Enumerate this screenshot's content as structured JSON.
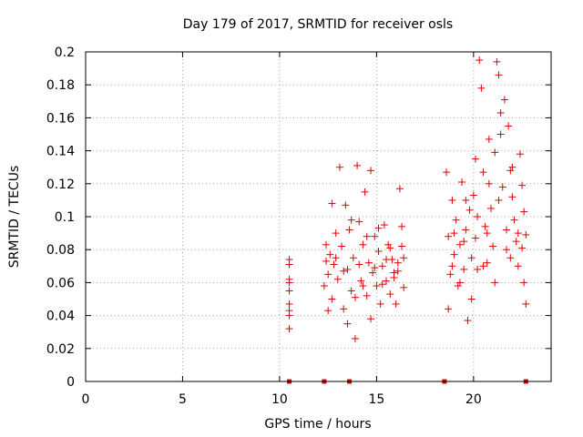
{
  "chart_data": {
    "type": "scatter",
    "title": "Day 179 of 2017, SRMTID for receiver osls",
    "xlabel": "GPS time / hours",
    "ylabel": "SRMTID / TECUs",
    "xlim": [
      0,
      24
    ],
    "ylim": [
      0,
      0.2
    ],
    "grid": true,
    "x_ticks": [
      0,
      5,
      10,
      15,
      20
    ],
    "x_tick_labels": [
      "0",
      "5",
      "10",
      "15",
      "20"
    ],
    "y_ticks": [
      0,
      0.02,
      0.04,
      0.06,
      0.08,
      0.1,
      0.12,
      0.14,
      0.16,
      0.18,
      0.2
    ],
    "y_tick_labels": [
      "0",
      "0.02",
      "0.04",
      "0.06",
      "0.08",
      "0.1",
      "0.12",
      "0.14",
      "0.16",
      "0.18",
      "0.2"
    ],
    "series": [
      {
        "name": "SRMTID",
        "color": "#e00000",
        "marker": "plus",
        "points": [
          [
            10.5,
            0.074
          ],
          [
            10.5,
            0.071
          ],
          [
            10.5,
            0.062
          ],
          [
            10.5,
            0.06
          ],
          [
            10.5,
            0.055
          ],
          [
            10.5,
            0.047
          ],
          [
            10.5,
            0.043
          ],
          [
            10.5,
            0.04
          ],
          [
            10.5,
            0.032
          ],
          [
            12.3,
            0.058
          ],
          [
            12.4,
            0.083
          ],
          [
            12.5,
            0.065
          ],
          [
            12.6,
            0.077
          ],
          [
            12.7,
            0.05
          ],
          [
            12.8,
            0.071
          ],
          [
            12.9,
            0.09
          ],
          [
            13.0,
            0.062
          ],
          [
            13.1,
            0.13
          ],
          [
            13.2,
            0.082
          ],
          [
            13.3,
            0.044
          ],
          [
            13.4,
            0.107
          ],
          [
            13.5,
            0.068
          ],
          [
            13.6,
            0.092
          ],
          [
            13.7,
            0.055
          ],
          [
            13.8,
            0.075
          ],
          [
            13.9,
            0.026
          ],
          [
            14.0,
            0.131
          ],
          [
            14.1,
            0.097
          ],
          [
            14.2,
            0.061
          ],
          [
            14.3,
            0.083
          ],
          [
            14.4,
            0.115
          ],
          [
            14.5,
            0.052
          ],
          [
            14.6,
            0.072
          ],
          [
            14.7,
            0.128
          ],
          [
            14.8,
            0.066
          ],
          [
            14.9,
            0.088
          ],
          [
            15.0,
            0.058
          ],
          [
            15.1,
            0.079
          ],
          [
            15.2,
            0.047
          ],
          [
            15.3,
            0.07
          ],
          [
            15.4,
            0.095
          ],
          [
            15.5,
            0.061
          ],
          [
            15.6,
            0.083
          ],
          [
            15.7,
            0.053
          ],
          [
            15.8,
            0.074
          ],
          [
            15.9,
            0.063
          ],
          [
            16.0,
            0.047
          ],
          [
            16.1,
            0.067
          ],
          [
            16.2,
            0.117
          ],
          [
            16.3,
            0.082
          ],
          [
            16.4,
            0.057
          ],
          [
            16.4,
            0.075
          ],
          [
            12.5,
            0.043
          ],
          [
            12.9,
            0.075
          ],
          [
            13.3,
            0.067
          ],
          [
            13.7,
            0.098
          ],
          [
            14.1,
            0.071
          ],
          [
            14.5,
            0.088
          ],
          [
            14.9,
            0.069
          ],
          [
            15.3,
            0.059
          ],
          [
            15.7,
            0.081
          ],
          [
            16.1,
            0.072
          ],
          [
            13.5,
            0.035
          ],
          [
            14.3,
            0.058
          ],
          [
            15.1,
            0.093
          ],
          [
            15.9,
            0.066
          ],
          [
            12.7,
            0.108
          ],
          [
            14.7,
            0.038
          ],
          [
            15.5,
            0.074
          ],
          [
            13.9,
            0.051
          ],
          [
            16.3,
            0.094
          ],
          [
            12.4,
            0.073
          ],
          [
            18.6,
            0.127
          ],
          [
            18.7,
            0.088
          ],
          [
            18.8,
            0.065
          ],
          [
            18.9,
            0.11
          ],
          [
            19.0,
            0.077
          ],
          [
            19.1,
            0.098
          ],
          [
            19.2,
            0.058
          ],
          [
            19.3,
            0.083
          ],
          [
            19.4,
            0.121
          ],
          [
            19.5,
            0.068
          ],
          [
            19.6,
            0.092
          ],
          [
            19.7,
            0.037
          ],
          [
            19.8,
            0.104
          ],
          [
            19.9,
            0.075
          ],
          [
            20.0,
            0.113
          ],
          [
            20.1,
            0.087
          ],
          [
            20.2,
            0.068
          ],
          [
            20.3,
            0.195
          ],
          [
            20.4,
            0.178
          ],
          [
            20.5,
            0.127
          ],
          [
            20.6,
            0.094
          ],
          [
            20.7,
            0.072
          ],
          [
            20.8,
            0.147
          ],
          [
            20.9,
            0.105
          ],
          [
            21.0,
            0.082
          ],
          [
            21.1,
            0.139
          ],
          [
            21.2,
            0.194
          ],
          [
            21.3,
            0.186
          ],
          [
            21.4,
            0.163
          ],
          [
            21.5,
            0.118
          ],
          [
            21.6,
            0.171
          ],
          [
            21.7,
            0.092
          ],
          [
            21.8,
            0.155
          ],
          [
            21.9,
            0.128
          ],
          [
            22.0,
            0.112
          ],
          [
            22.1,
            0.098
          ],
          [
            22.2,
            0.085
          ],
          [
            22.3,
            0.07
          ],
          [
            22.4,
            0.138
          ],
          [
            22.5,
            0.119
          ],
          [
            22.6,
            0.103
          ],
          [
            22.7,
            0.047
          ],
          [
            22.7,
            0.089
          ],
          [
            22.6,
            0.06
          ],
          [
            18.7,
            0.044
          ],
          [
            19.0,
            0.09
          ],
          [
            19.3,
            0.06
          ],
          [
            19.6,
            0.11
          ],
          [
            19.9,
            0.05
          ],
          [
            20.2,
            0.1
          ],
          [
            20.5,
            0.07
          ],
          [
            20.8,
            0.12
          ],
          [
            21.1,
            0.06
          ],
          [
            21.4,
            0.15
          ],
          [
            21.7,
            0.08
          ],
          [
            22.0,
            0.13
          ],
          [
            22.3,
            0.09
          ],
          [
            19.5,
            0.085
          ],
          [
            20.1,
            0.135
          ],
          [
            20.7,
            0.09
          ],
          [
            21.3,
            0.11
          ],
          [
            21.9,
            0.075
          ],
          [
            18.9,
            0.07
          ],
          [
            22.5,
            0.081
          ]
        ]
      }
    ],
    "markers_on_axis": {
      "name": "data gaps",
      "color": "#e00000",
      "x": [
        10.5,
        12.3,
        13.6,
        18.5,
        22.7
      ],
      "y": 0
    }
  }
}
